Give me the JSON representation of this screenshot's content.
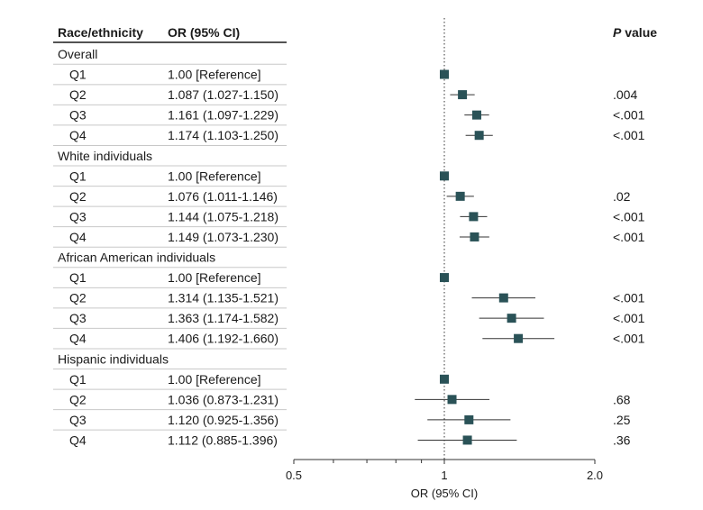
{
  "chart_data": {
    "type": "forest",
    "columns": {
      "group": "Race/ethnicity",
      "estimate": "OR (95% CI)",
      "pvalue_prefix": "P",
      "pvalue_suffix": " value"
    },
    "rows": [
      {
        "kind": "group",
        "label": "Overall"
      },
      {
        "kind": "item",
        "label": "Q1",
        "text": "1.00 [Reference]",
        "or": 1.0,
        "lo": 1.0,
        "hi": 1.0,
        "p": ""
      },
      {
        "kind": "item",
        "label": "Q2",
        "text": "1.087 (1.027-1.150)",
        "or": 1.087,
        "lo": 1.027,
        "hi": 1.15,
        "p": ".004"
      },
      {
        "kind": "item",
        "label": "Q3",
        "text": "1.161 (1.097-1.229)",
        "or": 1.161,
        "lo": 1.097,
        "hi": 1.229,
        "p": "<.001"
      },
      {
        "kind": "item",
        "label": "Q4",
        "text": "1.174 (1.103-1.250)",
        "or": 1.174,
        "lo": 1.103,
        "hi": 1.25,
        "p": "<.001"
      },
      {
        "kind": "group",
        "label": "White individuals"
      },
      {
        "kind": "item",
        "label": "Q1",
        "text": "1.00 [Reference]",
        "or": 1.0,
        "lo": 1.0,
        "hi": 1.0,
        "p": ""
      },
      {
        "kind": "item",
        "label": "Q2",
        "text": "1.076 (1.011-1.146)",
        "or": 1.076,
        "lo": 1.011,
        "hi": 1.146,
        "p": ".02"
      },
      {
        "kind": "item",
        "label": "Q3",
        "text": "1.144 (1.075-1.218)",
        "or": 1.144,
        "lo": 1.075,
        "hi": 1.218,
        "p": "<.001"
      },
      {
        "kind": "item",
        "label": "Q4",
        "text": "1.149 (1.073-1.230)",
        "or": 1.149,
        "lo": 1.073,
        "hi": 1.23,
        "p": "<.001"
      },
      {
        "kind": "group",
        "label": "African American individuals"
      },
      {
        "kind": "item",
        "label": "Q1",
        "text": "1.00 [Reference]",
        "or": 1.0,
        "lo": 1.0,
        "hi": 1.0,
        "p": ""
      },
      {
        "kind": "item",
        "label": "Q2",
        "text": "1.314 (1.135-1.521)",
        "or": 1.314,
        "lo": 1.135,
        "hi": 1.521,
        "p": "<.001"
      },
      {
        "kind": "item",
        "label": "Q3",
        "text": "1.363 (1.174-1.582)",
        "or": 1.363,
        "lo": 1.174,
        "hi": 1.582,
        "p": "<.001"
      },
      {
        "kind": "item",
        "label": "Q4",
        "text": "1.406 (1.192-1.660)",
        "or": 1.406,
        "lo": 1.192,
        "hi": 1.66,
        "p": "<.001"
      },
      {
        "kind": "group",
        "label": "Hispanic individuals"
      },
      {
        "kind": "item",
        "label": "Q1",
        "text": "1.00 [Reference]",
        "or": 1.0,
        "lo": 1.0,
        "hi": 1.0,
        "p": ""
      },
      {
        "kind": "item",
        "label": "Q2",
        "text": "1.036 (0.873-1.231)",
        "or": 1.036,
        "lo": 0.873,
        "hi": 1.231,
        "p": ".68"
      },
      {
        "kind": "item",
        "label": "Q3",
        "text": "1.120 (0.925-1.356)",
        "or": 1.12,
        "lo": 0.925,
        "hi": 1.356,
        "p": ".25"
      },
      {
        "kind": "item",
        "label": "Q4",
        "text": "1.112 (0.885-1.396)",
        "or": 1.112,
        "lo": 0.885,
        "hi": 1.396,
        "p": ".36"
      }
    ],
    "x_axis": {
      "scale": "log",
      "range": [
        0.5,
        2.0
      ],
      "reference_value": 1.0,
      "tick_labels": [
        {
          "value": 0.5,
          "label": "0.5"
        },
        {
          "value": 1.0,
          "label": "1"
        },
        {
          "value": 2.0,
          "label": "2.0"
        }
      ],
      "minor_ticks": [
        0.6,
        0.7,
        0.8,
        0.9
      ],
      "label": "OR (95% CI)"
    },
    "colors": {
      "marker": "#2a5257",
      "line": "#333333",
      "text": "#1a1a1a",
      "rule": "#c8c8c8"
    }
  }
}
